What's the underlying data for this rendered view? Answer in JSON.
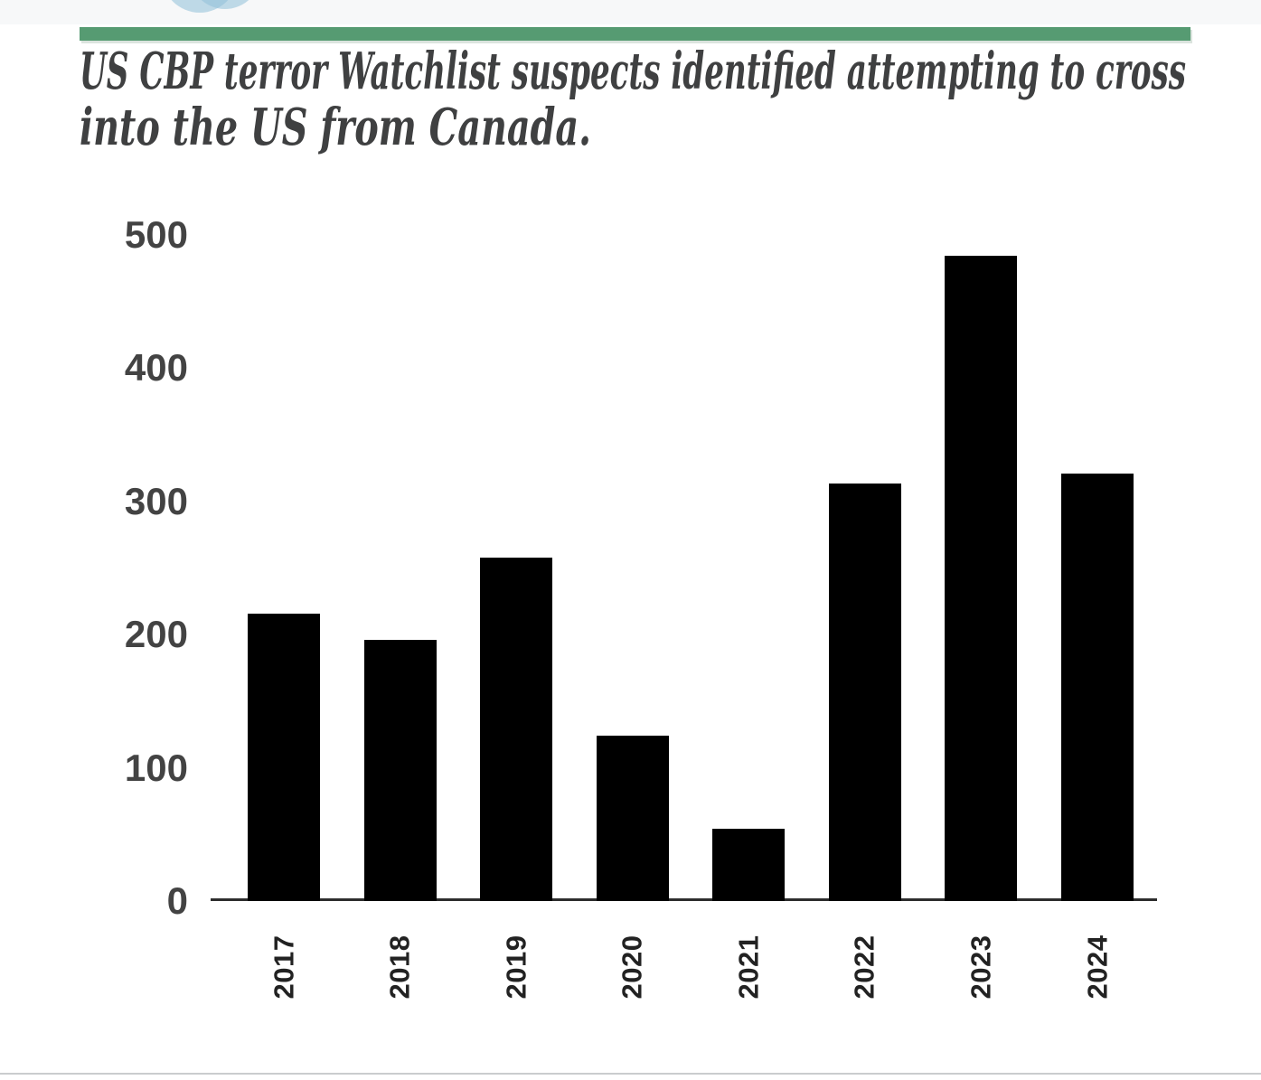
{
  "page": {
    "top_band_color": "#f7f8f9",
    "divider_color": "#569b72",
    "logo_circle_color": "#8fc0d8",
    "title_color": "#3f4041",
    "bottom_rule_color": "#caccce",
    "background": "#ffffff"
  },
  "title": {
    "line1": "US CBP terror Watchlist suspects identified attempting to cross",
    "line2": "into the US from Canada."
  },
  "chart_data": {
    "type": "bar",
    "title": "US CBP terror Watchlist suspects identified attempting to cross into the US from Canada.",
    "categories": [
      "2017",
      "2018",
      "2019",
      "2020",
      "2021",
      "2022",
      "2023",
      "2024"
    ],
    "values": [
      216,
      196,
      258,
      124,
      54,
      313,
      484,
      321
    ],
    "xlabel": "",
    "ylabel": "",
    "ylim": [
      0,
      500
    ],
    "yticks": [
      0,
      100,
      200,
      300,
      400,
      500
    ],
    "grid": false,
    "legend": null,
    "bar_color": "#000000",
    "axis_color": "#2d2d2d",
    "y_tick_label_color": "#434343",
    "x_tick_label_color": "#222222",
    "x_tick_rotation_deg": -90
  }
}
